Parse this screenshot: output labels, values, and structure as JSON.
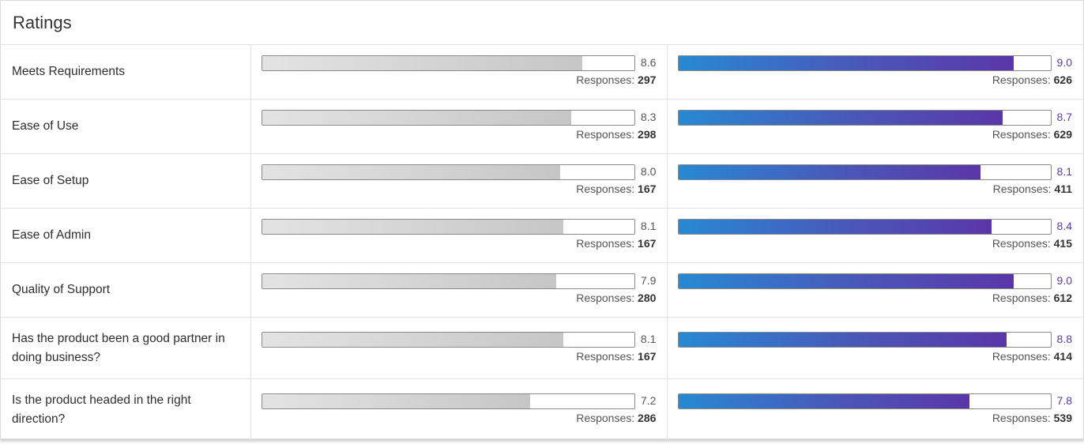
{
  "title": "Ratings",
  "responses_label": "Responses:",
  "max_score": 10,
  "rows": [
    {
      "label": "Meets Requirements",
      "left": {
        "score": "8.6",
        "responses": "297"
      },
      "right": {
        "score": "9.0",
        "responses": "626"
      }
    },
    {
      "label": "Ease of Use",
      "left": {
        "score": "8.3",
        "responses": "298"
      },
      "right": {
        "score": "8.7",
        "responses": "629"
      }
    },
    {
      "label": "Ease of Setup",
      "left": {
        "score": "8.0",
        "responses": "167"
      },
      "right": {
        "score": "8.1",
        "responses": "411"
      }
    },
    {
      "label": "Ease of Admin",
      "left": {
        "score": "8.1",
        "responses": "167"
      },
      "right": {
        "score": "8.4",
        "responses": "415"
      }
    },
    {
      "label": "Quality of Support",
      "left": {
        "score": "7.9",
        "responses": "280"
      },
      "right": {
        "score": "9.0",
        "responses": "612"
      }
    },
    {
      "label": "Has the product been a good partner in doing business?",
      "left": {
        "score": "8.1",
        "responses": "167"
      },
      "right": {
        "score": "8.8",
        "responses": "414"
      }
    },
    {
      "label": "Is the product headed in the right direction?",
      "left": {
        "score": "7.2",
        "responses": "286"
      },
      "right": {
        "score": "7.8",
        "responses": "539"
      }
    }
  ],
  "colors": {
    "left_bar": "#c6c6c6",
    "right_bar_start": "#2789d3",
    "right_bar_end": "#5a36a8",
    "right_score_text": "#5b3aa8"
  }
}
